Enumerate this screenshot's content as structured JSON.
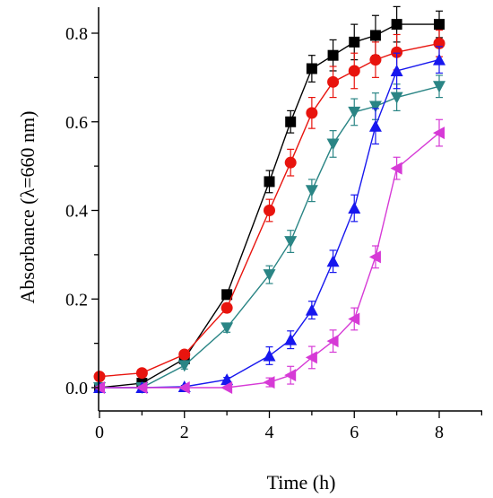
{
  "chart_data": {
    "type": "line",
    "title": "",
    "xlabel": "Time (h)",
    "ylabel": "Absorbance (λ=660 nm)",
    "xlim": [
      0,
      9
    ],
    "ylim": [
      -0.06,
      0.86
    ],
    "xticks": [
      0,
      2,
      4,
      6,
      8
    ],
    "yticks": [
      0.0,
      0.2,
      0.4,
      0.6,
      0.8
    ],
    "xtick_labels": [
      "0",
      "2",
      "4",
      "6",
      "8"
    ],
    "ytick_labels": [
      "0.0",
      "0.2",
      "0.4",
      "0.6",
      "0.8"
    ],
    "grid": false,
    "legend": "none",
    "series": [
      {
        "color": "#000000",
        "marker": "square",
        "points": [
          [
            0,
            0.0,
            0.0
          ],
          [
            1,
            0.01,
            0.004
          ],
          [
            2,
            0.065,
            0.008
          ],
          [
            3,
            0.21,
            0.01
          ],
          [
            4,
            0.465,
            0.025
          ],
          [
            4.5,
            0.6,
            0.025
          ],
          [
            5,
            0.72,
            0.03
          ],
          [
            5.5,
            0.75,
            0.035
          ],
          [
            6,
            0.78,
            0.04
          ],
          [
            6.5,
            0.795,
            0.045
          ],
          [
            7,
            0.82,
            0.04
          ],
          [
            8,
            0.82,
            0.03
          ]
        ]
      },
      {
        "color": "#e8140e",
        "marker": "circle",
        "points": [
          [
            0,
            0.025,
            0.004
          ],
          [
            1,
            0.033,
            0.004
          ],
          [
            2,
            0.075,
            0.008
          ],
          [
            3,
            0.18,
            0.01
          ],
          [
            4,
            0.4,
            0.025
          ],
          [
            4.5,
            0.508,
            0.03
          ],
          [
            5,
            0.62,
            0.035
          ],
          [
            5.5,
            0.69,
            0.035
          ],
          [
            6,
            0.715,
            0.04
          ],
          [
            6.5,
            0.74,
            0.04
          ],
          [
            7,
            0.757,
            0.04
          ],
          [
            8,
            0.777,
            0.03
          ]
        ]
      },
      {
        "color": "#2a8585",
        "marker": "triangle-down",
        "points": [
          [
            0,
            0.0,
            0.0
          ],
          [
            1,
            0.0,
            0.0
          ],
          [
            2,
            0.05,
            0.008
          ],
          [
            3,
            0.135,
            0.01
          ],
          [
            4,
            0.255,
            0.02
          ],
          [
            4.5,
            0.33,
            0.025
          ],
          [
            5,
            0.445,
            0.025
          ],
          [
            5.5,
            0.55,
            0.03
          ],
          [
            6,
            0.622,
            0.03
          ],
          [
            6.5,
            0.635,
            0.03
          ],
          [
            7,
            0.655,
            0.03
          ],
          [
            8,
            0.68,
            0.025
          ]
        ]
      },
      {
        "color": "#1717ee",
        "marker": "triangle-up",
        "points": [
          [
            0,
            0.0,
            0.0
          ],
          [
            1,
            0.0,
            0.0
          ],
          [
            2,
            0.002,
            0.003
          ],
          [
            3,
            0.018,
            0.005
          ],
          [
            4,
            0.072,
            0.02
          ],
          [
            4.5,
            0.108,
            0.02
          ],
          [
            5,
            0.175,
            0.02
          ],
          [
            5.5,
            0.285,
            0.025
          ],
          [
            6,
            0.405,
            0.03
          ],
          [
            6.5,
            0.59,
            0.04
          ],
          [
            7,
            0.715,
            0.04
          ],
          [
            8,
            0.74,
            0.03
          ]
        ]
      },
      {
        "color": "#d63ad6",
        "marker": "triangle-left",
        "points": [
          [
            0,
            0.0,
            0.0
          ],
          [
            1,
            0.0,
            0.0
          ],
          [
            2,
            0.0,
            0.0
          ],
          [
            3,
            0.0,
            0.0
          ],
          [
            4,
            0.012,
            0.01
          ],
          [
            4.5,
            0.028,
            0.02
          ],
          [
            5,
            0.068,
            0.025
          ],
          [
            5.5,
            0.105,
            0.025
          ],
          [
            6,
            0.155,
            0.025
          ],
          [
            6.5,
            0.295,
            0.025
          ],
          [
            7,
            0.495,
            0.025
          ],
          [
            8,
            0.575,
            0.03
          ]
        ]
      }
    ]
  }
}
